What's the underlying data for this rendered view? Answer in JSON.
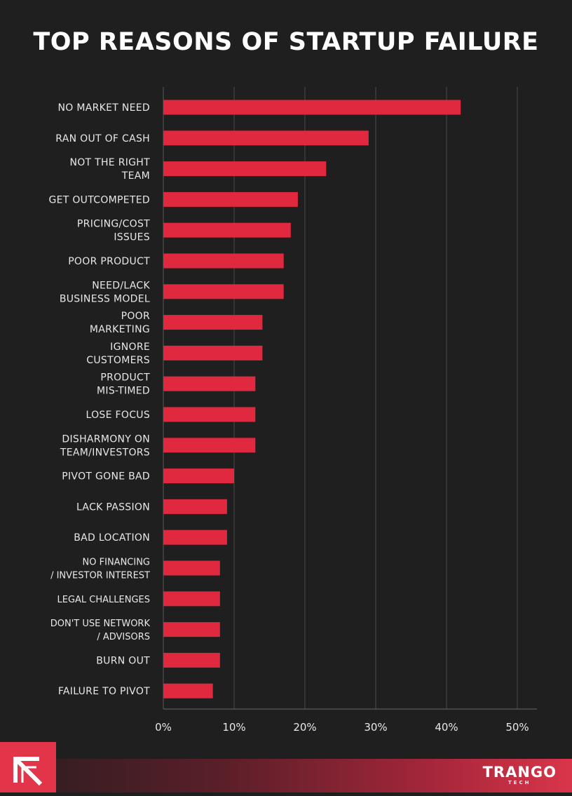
{
  "header": {
    "title": "TOP REASONS OF STARTUP FAILURE"
  },
  "brand": {
    "name": "TRANGO",
    "sub": "TECH"
  },
  "colors": {
    "bar": "#e0283f",
    "grid": "#4a4a4a",
    "background": "#1f1f1f",
    "accent": "#e3354a"
  },
  "chart_data": {
    "type": "bar",
    "orientation": "horizontal",
    "title": "TOP REASONS OF STARTUP FAILURE",
    "xlabel": "",
    "ylabel": "",
    "xlim": [
      0,
      50
    ],
    "grid": true,
    "categories": [
      "NO MARKET NEED",
      "RAN OUT OF CASH",
      "NOT THE RIGHT TEAM",
      "GET OUTCOMPETED",
      "PRICING/COST ISSUES",
      "POOR PRODUCT",
      "NEED/LACK BUSINESS MODEL",
      "POOR MARKETING",
      "IGNORE CUSTOMERS",
      "PRODUCT MIS-TIMED",
      "LOSE FOCUS",
      "DISHARMONY ON TEAM/INVESTORS",
      "PIVOT GONE BAD",
      "LACK PASSION",
      "BAD LOCATION",
      "NO FINANCING / INVESTOR INTEREST",
      "LEGAL CHALLENGES",
      "DON'T USE NETWORK / ADVISORS",
      "BURN OUT",
      "FAILURE TO PIVOT"
    ],
    "label_lines": [
      [
        "NO MARKET NEED"
      ],
      [
        "RAN OUT OF CASH"
      ],
      [
        "NOT THE RIGHT",
        "TEAM"
      ],
      [
        "GET OUTCOMPETED"
      ],
      [
        "PRICING/COST",
        "ISSUES"
      ],
      [
        "POOR PRODUCT"
      ],
      [
        "NEED/LACK",
        "BUSINESS MODEL"
      ],
      [
        "POOR",
        "MARKETING"
      ],
      [
        "IGNORE",
        "CUSTOMERS"
      ],
      [
        "PRODUCT",
        "MIS-TIMED"
      ],
      [
        "LOSE FOCUS"
      ],
      [
        "DISHARMONY ON",
        "TEAM/INVESTORS"
      ],
      [
        "PIVOT GONE BAD"
      ],
      [
        "LACK PASSION"
      ],
      [
        "BAD LOCATION"
      ],
      [
        "NO FINANCING",
        "/ INVESTOR INTEREST"
      ],
      [
        "LEGAL CHALLENGES"
      ],
      [
        "DON'T USE NETWORK",
        "/ ADVISORS"
      ],
      [
        "BURN OUT"
      ],
      [
        "FAILURE TO PIVOT"
      ]
    ],
    "values": [
      42,
      29,
      23,
      19,
      18,
      17,
      17,
      14,
      14,
      13,
      13,
      13,
      10,
      9,
      9,
      8,
      8,
      8,
      8,
      7
    ],
    "xticks": [
      0,
      10,
      20,
      30,
      40,
      50
    ],
    "xtick_labels": [
      "0%",
      "10%",
      "20%",
      "30%",
      "40%",
      "50%"
    ]
  }
}
